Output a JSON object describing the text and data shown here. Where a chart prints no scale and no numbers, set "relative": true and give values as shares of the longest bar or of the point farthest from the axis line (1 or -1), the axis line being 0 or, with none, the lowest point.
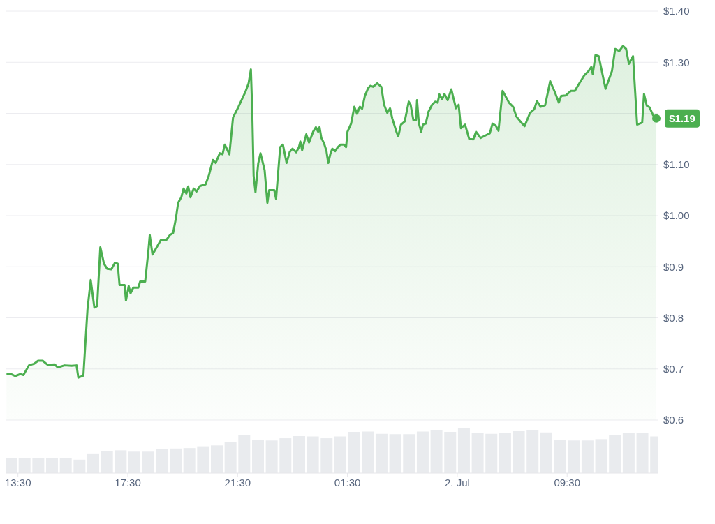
{
  "chart_data": [
    {
      "type": "area",
      "x": [
        "--07-01T13:05",
        "--07-01T13:15",
        "--07-01T13:24",
        "--07-01T13:35",
        "--07-01T13:42",
        "--07-01T13:54",
        "--07-01T14:05",
        "--07-01T14:14",
        "--07-01T14:24",
        "--07-01T14:35",
        "--07-01T14:50",
        "--07-01T14:57",
        "--07-01T15:12",
        "--07-01T15:27",
        "--07-01T15:38",
        "--07-01T15:42",
        "--07-01T15:53",
        "--07-01T16:02",
        "--07-01T16:09",
        "--07-01T16:17",
        "--07-01T16:23",
        "--07-01T16:30",
        "--07-01T16:38",
        "--07-01T16:45",
        "--07-01T16:54",
        "--07-01T17:02",
        "--07-01T17:08",
        "--07-01T17:12",
        "--07-01T17:23",
        "--07-01T17:26",
        "--07-01T17:32",
        "--07-01T17:36",
        "--07-01T17:42",
        "--07-01T17:53",
        "--07-01T17:57",
        "--07-01T18:08",
        "--07-01T18:15",
        "--07-01T18:18",
        "--07-01T18:24",
        "--07-01T18:35",
        "--07-01T18:42",
        "--07-01T18:54",
        "--07-01T19:02",
        "--07-01T19:09",
        "--07-01T19:15",
        "--07-01T19:20",
        "--07-01T19:27",
        "--07-01T19:32",
        "--07-01T19:38",
        "--07-01T19:42",
        "--07-01T19:47",
        "--07-01T19:54",
        "--07-01T20:00",
        "--07-01T20:08",
        "--07-01T20:20",
        "--07-01T20:27",
        "--07-01T20:36",
        "--07-01T20:42",
        "--07-01T20:51",
        "--07-01T20:57",
        "--07-01T21:02",
        "--07-01T21:12",
        "--07-01T21:20",
        "--07-01T21:32",
        "--07-01T21:47",
        "--07-01T21:54",
        "--07-01T21:59",
        "--07-01T22:02",
        "--07-01T22:05",
        "--07-01T22:09",
        "--07-01T22:15",
        "--07-01T22:20",
        "--07-01T22:29",
        "--07-01T22:35",
        "--07-01T22:39",
        "--07-01T22:50",
        "--07-01T22:54",
        "--07-01T23:03",
        "--07-01T23:09",
        "--07-01T23:17",
        "--07-01T23:24",
        "--07-01T23:30",
        "--07-01T23:38",
        "--07-01T23:44",
        "--07-01T23:47",
        "--07-01T23:51",
        "--07-02T00:00",
        "--07-02T00:06",
        "--07-02T00:15",
        "--07-02T00:21",
        "--07-02T00:26",
        "--07-02T00:29",
        "--07-02T00:33",
        "--07-02T00:39",
        "--07-02T00:44",
        "--07-02T00:48",
        "--07-02T00:53",
        "--07-02T00:57",
        "--07-02T01:03",
        "--07-02T01:09",
        "--07-02T01:15",
        "--07-02T01:23",
        "--07-02T01:27",
        "--07-02T01:30",
        "--07-02T01:38",
        "--07-02T01:45",
        "--07-02T01:51",
        "--07-02T01:57",
        "--07-02T02:02",
        "--07-02T02:08",
        "--07-02T02:15",
        "--07-02T02:20",
        "--07-02T02:26",
        "--07-02T02:35",
        "--07-02T02:44",
        "--07-02T02:50",
        "--07-02T02:57",
        "--07-02T03:03",
        "--07-02T03:08",
        "--07-02T03:17",
        "--07-02T03:21",
        "--07-02T03:27",
        "--07-02T03:35",
        "--07-02T03:44",
        "--07-02T03:48",
        "--07-02T03:54",
        "--07-02T04:00",
        "--07-02T04:02",
        "--07-02T04:06",
        "--07-02T04:11",
        "--07-02T04:15",
        "--07-02T04:21",
        "--07-02T04:27",
        "--07-02T04:35",
        "--07-02T04:42",
        "--07-02T04:47",
        "--07-02T04:51",
        "--07-02T04:57",
        "--07-02T05:02",
        "--07-02T05:09",
        "--07-02T05:17",
        "--07-02T05:27",
        "--07-02T05:33",
        "--07-02T05:38",
        "--07-02T05:47",
        "--07-02T05:56",
        "--07-02T06:05",
        "--07-02T06:11",
        "--07-02T06:21",
        "--07-02T06:32",
        "--07-02T06:41",
        "--07-02T06:47",
        "--07-02T06:54",
        "--07-02T07:00",
        "--07-02T07:09",
        "--07-02T07:23",
        "--07-02T07:32",
        "--07-02T07:39",
        "--07-02T07:50",
        "--07-02T07:57",
        "--07-02T08:09",
        "--07-02T08:18",
        "--07-02T08:24",
        "--07-02T08:32",
        "--07-02T08:42",
        "--07-02T08:53",
        "--07-02T09:03",
        "--07-02T09:12",
        "--07-02T09:17",
        "--07-02T09:27",
        "--07-02T09:38",
        "--07-02T09:47",
        "--07-02T09:54",
        "--07-02T10:08",
        "--07-02T10:17",
        "--07-02T10:23",
        "--07-02T10:26",
        "--07-02T10:32",
        "--07-02T10:39",
        "--07-02T10:54",
        "--07-02T11:08",
        "--07-02T11:15",
        "--07-02T11:24",
        "--07-02T11:32",
        "--07-02T11:39",
        "--07-02T11:45",
        "--07-02T11:54",
        "--07-02T12:03",
        "--07-02T12:14",
        "--07-02T12:18",
        "--07-02T12:24",
        "--07-02T12:30",
        "--07-02T12:38",
        "--07-02T12:45"
      ],
      "series": [
        {
          "color": "#4caf50",
          "values": [
            0.69,
            0.69,
            0.686,
            0.69,
            0.688,
            0.707,
            0.71,
            0.716,
            0.716,
            0.708,
            0.709,
            0.703,
            0.707,
            0.706,
            0.707,
            0.683,
            0.687,
            0.817,
            0.874,
            0.82,
            0.823,
            0.938,
            0.906,
            0.896,
            0.895,
            0.908,
            0.906,
            0.864,
            0.864,
            0.834,
            0.862,
            0.848,
            0.859,
            0.859,
            0.871,
            0.871,
            0.931,
            0.962,
            0.924,
            0.941,
            0.952,
            0.952,
            0.962,
            0.966,
            0.994,
            1.025,
            1.036,
            1.053,
            1.043,
            1.057,
            1.036,
            1.053,
            1.047,
            1.058,
            1.061,
            1.078,
            1.109,
            1.103,
            1.122,
            1.12,
            1.139,
            1.12,
            1.192,
            1.213,
            1.242,
            1.259,
            1.286,
            1.203,
            1.078,
            1.046,
            1.102,
            1.122,
            1.089,
            1.025,
            1.05,
            1.05,
            1.033,
            1.134,
            1.139,
            1.103,
            1.125,
            1.131,
            1.124,
            1.134,
            1.145,
            1.128,
            1.159,
            1.143,
            1.164,
            1.173,
            1.164,
            1.173,
            1.152,
            1.141,
            1.127,
            1.103,
            1.122,
            1.131,
            1.126,
            1.134,
            1.139,
            1.139,
            1.134,
            1.164,
            1.18,
            1.213,
            1.199,
            1.213,
            1.209,
            1.234,
            1.249,
            1.254,
            1.252,
            1.259,
            1.252,
            1.217,
            1.201,
            1.21,
            1.19,
            1.164,
            1.155,
            1.178,
            1.184,
            1.223,
            1.217,
            1.187,
            1.187,
            1.226,
            1.181,
            1.164,
            1.178,
            1.18,
            1.203,
            1.217,
            1.223,
            1.221,
            1.237,
            1.228,
            1.238,
            1.226,
            1.247,
            1.21,
            1.217,
            1.171,
            1.178,
            1.15,
            1.149,
            1.164,
            1.152,
            1.157,
            1.161,
            1.18,
            1.176,
            1.166,
            1.244,
            1.221,
            1.213,
            1.194,
            1.182,
            1.175,
            1.201,
            1.208,
            1.224,
            1.213,
            1.216,
            1.263,
            1.242,
            1.221,
            1.234,
            1.235,
            1.244,
            1.244,
            1.255,
            1.275,
            1.283,
            1.291,
            1.277,
            1.314,
            1.312,
            1.248,
            1.283,
            1.326,
            1.322,
            1.332,
            1.326,
            1.297,
            1.312,
            1.178,
            1.182,
            1.238,
            1.215,
            1.212,
            1.196,
            1.19
          ]
        }
      ],
      "xlim": [
        "--07-01T13:03",
        "--07-02T12:48"
      ],
      "ylim": [
        0.6,
        1.4
      ],
      "yticks": [
        {
          "value": 0.6,
          "label": "$0.6"
        },
        {
          "value": 0.7,
          "label": "$0.7"
        },
        {
          "value": 0.8,
          "label": "$0.8"
        },
        {
          "value": 0.9,
          "label": "$0.9"
        },
        {
          "value": 1.0,
          "label": "$1.00"
        },
        {
          "value": 1.1,
          "label": "$1.10"
        },
        {
          "value": 1.2,
          "label": null
        },
        {
          "value": 1.3,
          "label": "$1.30"
        },
        {
          "value": 1.4,
          "label": "$1.40"
        }
      ],
      "grid": "y",
      "tick_labels": "y",
      "annotations": [
        {
          "text": "$1.19",
          "x": "--07-02T12:45",
          "y": 1.19
        }
      ]
    },
    {
      "type": "bar",
      "relative": true,
      "x": [
        "--07-01T13:15",
        "--07-01T13:45",
        "--07-01T14:15",
        "--07-01T14:45",
        "--07-01T15:15",
        "--07-01T15:45",
        "--07-01T16:15",
        "--07-01T16:45",
        "--07-01T17:15",
        "--07-01T17:45",
        "--07-01T18:15",
        "--07-01T18:45",
        "--07-01T19:15",
        "--07-01T19:45",
        "--07-01T20:15",
        "--07-01T20:45",
        "--07-01T21:15",
        "--07-01T21:45",
        "--07-01T22:15",
        "--07-01T22:45",
        "--07-01T23:15",
        "--07-01T23:45",
        "--07-02T00:15",
        "--07-02T00:45",
        "--07-02T01:15",
        "--07-02T01:45",
        "--07-02T02:15",
        "--07-02T02:45",
        "--07-02T03:15",
        "--07-02T03:45",
        "--07-02T04:15",
        "--07-02T04:45",
        "--07-02T05:15",
        "--07-02T05:45",
        "--07-02T06:15",
        "--07-02T06:45",
        "--07-02T07:15",
        "--07-02T07:45",
        "--07-02T08:15",
        "--07-02T08:45",
        "--07-02T09:15",
        "--07-02T09:45",
        "--07-02T10:15",
        "--07-02T10:45",
        "--07-02T11:15",
        "--07-02T11:45",
        "--07-02T12:15",
        "--07-02T12:45"
      ],
      "values": [
        0.33,
        0.33,
        0.33,
        0.33,
        0.33,
        0.3,
        0.44,
        0.5,
        0.51,
        0.48,
        0.48,
        0.54,
        0.55,
        0.56,
        0.6,
        0.62,
        0.7,
        0.85,
        0.75,
        0.73,
        0.78,
        0.83,
        0.82,
        0.78,
        0.82,
        0.92,
        0.93,
        0.88,
        0.87,
        0.87,
        0.93,
        0.97,
        0.92,
        1,
        0.9,
        0.88,
        0.9,
        0.95,
        0.97,
        0.91,
        0.74,
        0.73,
        0.73,
        0.76,
        0.85,
        0.9,
        0.89,
        0.82
      ],
      "color": "#e9ebee",
      "xlim": [
        "--07-01T13:03",
        "--07-02T12:48"
      ],
      "xticks": [
        {
          "value": "--07-01T13:30",
          "label": "13:30"
        },
        {
          "value": "--07-01T17:30",
          "label": "17:30"
        },
        {
          "value": "--07-01T21:30",
          "label": "21:30"
        },
        {
          "value": "--07-02T01:30",
          "label": "01:30"
        },
        {
          "value": "--07-02T05:30",
          "label": "2. Jul"
        },
        {
          "value": "--07-02T09:30",
          "label": "09:30"
        }
      ],
      "tick_labels": "x"
    }
  ]
}
